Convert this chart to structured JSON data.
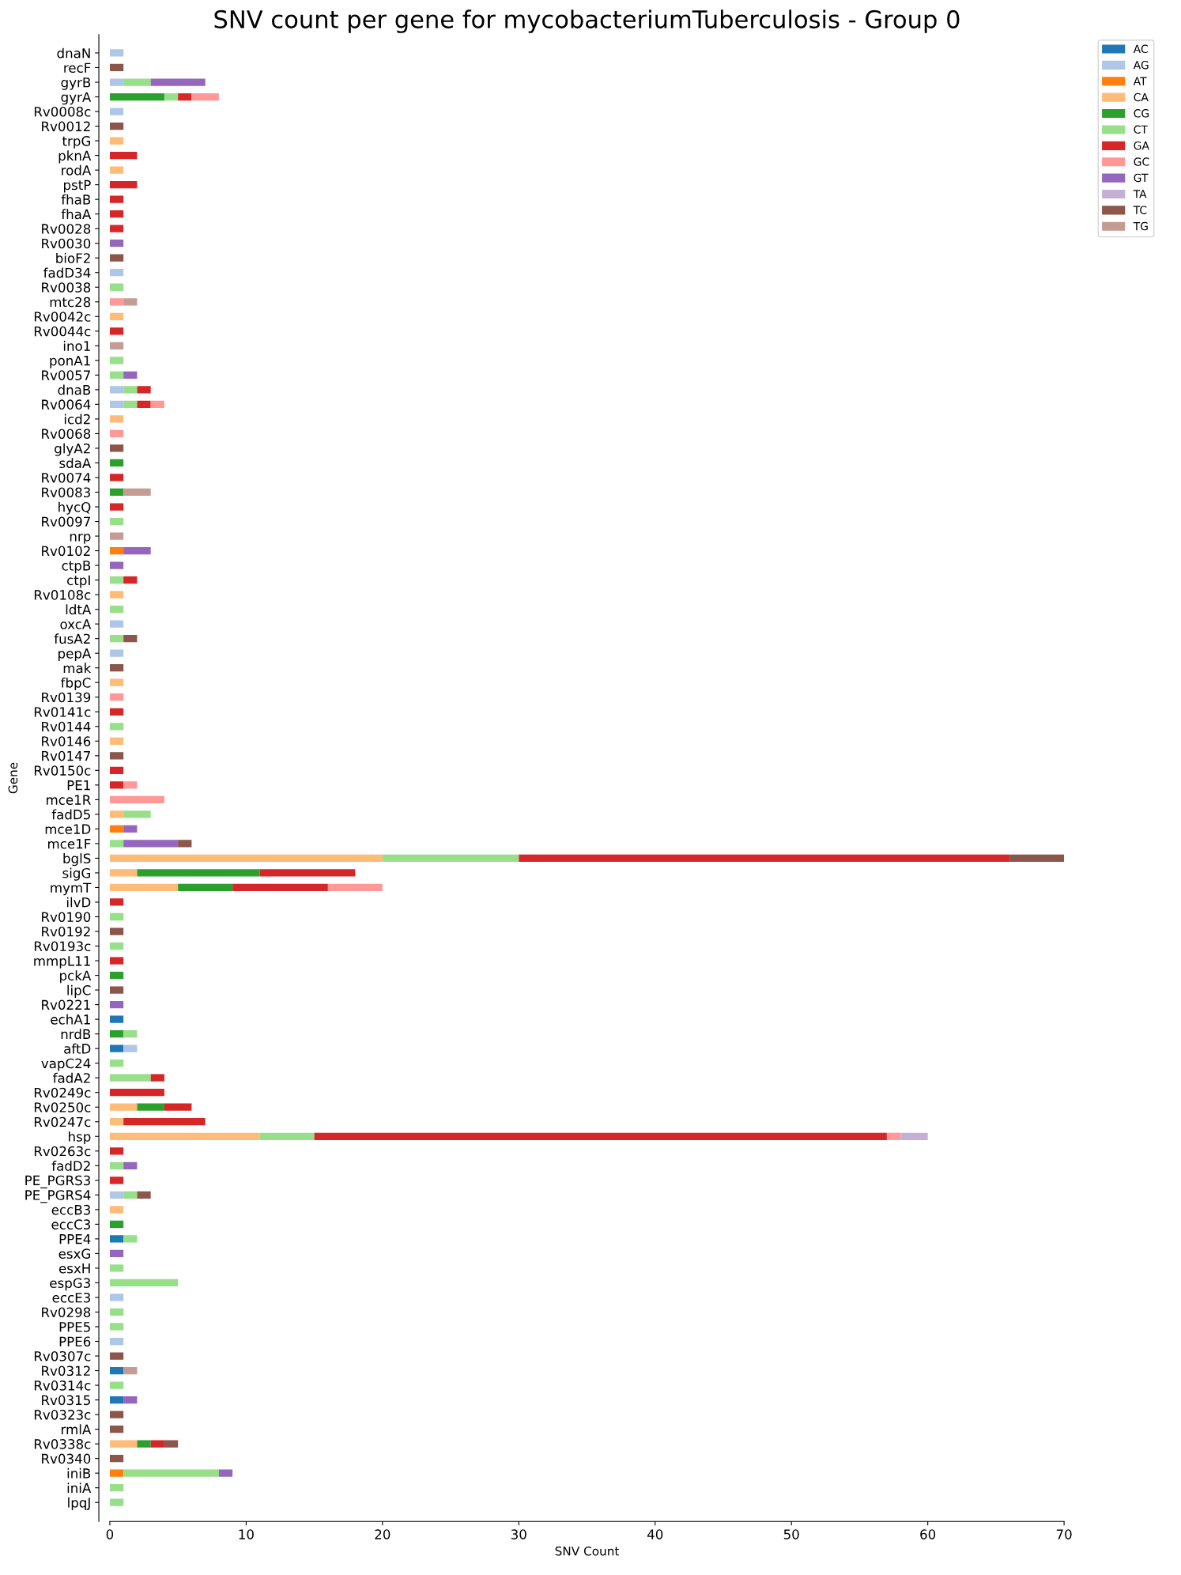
{
  "chart_data": {
    "type": "bar",
    "orientation": "horizontal",
    "stacked": true,
    "title": "SNV count per gene for mycobacteriumTuberculosis - Group 0",
    "xlabel": "SNV Count",
    "ylabel": "Gene",
    "categories": [
      "dnaN",
      "recF",
      "gyrB",
      "gyrA",
      "Rv0008c",
      "Rv0012",
      "trpG",
      "pknA",
      "rodA",
      "pstP",
      "fhaB",
      "fhaA",
      "Rv0028",
      "Rv0030",
      "bioF2",
      "fadD34",
      "Rv0038",
      "mtc28",
      "Rv0042c",
      "Rv0044c",
      "ino1",
      "ponA1",
      "Rv0057",
      "dnaB",
      "Rv0064",
      "icd2",
      "Rv0068",
      "glyA2",
      "sdaA",
      "Rv0074",
      "Rv0083",
      "hycQ",
      "Rv0097",
      "nrp",
      "Rv0102",
      "ctpB",
      "ctpI",
      "Rv0108c",
      "ldtA",
      "oxcA",
      "fusA2",
      "pepA",
      "mak",
      "fbpC",
      "Rv0139",
      "Rv0141c",
      "Rv0144",
      "Rv0146",
      "Rv0147",
      "Rv0150c",
      "PE1",
      "mce1R",
      "fadD5",
      "mce1D",
      "mce1F",
      "bglS",
      "sigG",
      "mymT",
      "ilvD",
      "Rv0190",
      "Rv0192",
      "Rv0193c",
      "mmpL11",
      "pckA",
      "lipC",
      "Rv0221",
      "echA1",
      "nrdB",
      "aftD",
      "vapC24",
      "fadA2",
      "Rv0249c",
      "Rv0250c",
      "Rv0247c",
      "hsp",
      "Rv0263c",
      "fadD2",
      "PE_PGRS3",
      "PE_PGRS4",
      "eccB3",
      "eccC3",
      "PPE4",
      "esxG",
      "esxH",
      "espG3",
      "eccE3",
      "Rv0298",
      "PPE5",
      "PPE6",
      "Rv0307c",
      "Rv0312",
      "Rv0314c",
      "Rv0315",
      "Rv0323c",
      "rmlA",
      "Rv0338c",
      "Rv0340",
      "iniB",
      "iniA",
      "lpqJ"
    ],
    "series": [
      {
        "name": "AC",
        "color": "#1f77b4",
        "values": [
          null,
          null,
          null,
          null,
          null,
          null,
          null,
          null,
          null,
          null,
          null,
          null,
          null,
          null,
          null,
          null,
          null,
          null,
          null,
          null,
          null,
          null,
          null,
          null,
          null,
          null,
          null,
          null,
          null,
          null,
          null,
          null,
          null,
          null,
          null,
          null,
          null,
          null,
          null,
          null,
          null,
          null,
          null,
          null,
          null,
          null,
          null,
          null,
          null,
          null,
          null,
          null,
          null,
          null,
          null,
          null,
          null,
          null,
          null,
          null,
          null,
          null,
          null,
          null,
          null,
          null,
          1,
          null,
          1,
          null,
          null,
          null,
          null,
          null,
          null,
          null,
          null,
          null,
          null,
          null,
          null,
          1,
          null,
          null,
          null,
          null,
          null,
          null,
          null,
          null,
          1,
          null,
          1,
          null,
          null,
          null,
          null,
          null,
          null,
          null
        ]
      },
      {
        "name": "AG",
        "color": "#aec7e8",
        "values": [
          1,
          null,
          1,
          null,
          1,
          null,
          null,
          null,
          null,
          null,
          null,
          null,
          null,
          null,
          null,
          1,
          null,
          null,
          null,
          null,
          null,
          null,
          null,
          1,
          1,
          null,
          null,
          null,
          null,
          null,
          null,
          null,
          null,
          null,
          null,
          null,
          null,
          null,
          null,
          1,
          null,
          1,
          null,
          null,
          null,
          null,
          null,
          null,
          null,
          null,
          null,
          null,
          null,
          null,
          null,
          null,
          null,
          null,
          null,
          null,
          null,
          null,
          null,
          null,
          null,
          null,
          null,
          null,
          1,
          null,
          null,
          null,
          null,
          null,
          null,
          null,
          null,
          null,
          1,
          null,
          null,
          null,
          null,
          null,
          null,
          1,
          null,
          null,
          1,
          null,
          null,
          null,
          null,
          null,
          null,
          null,
          null,
          null,
          null,
          null
        ]
      },
      {
        "name": "AT",
        "color": "#ff7f0e",
        "values": [
          null,
          null,
          null,
          null,
          null,
          null,
          null,
          null,
          null,
          null,
          null,
          null,
          null,
          null,
          null,
          null,
          null,
          null,
          null,
          null,
          null,
          null,
          null,
          null,
          null,
          null,
          null,
          null,
          null,
          null,
          null,
          null,
          null,
          null,
          1,
          null,
          null,
          null,
          null,
          null,
          null,
          null,
          null,
          null,
          null,
          null,
          null,
          null,
          null,
          null,
          null,
          null,
          null,
          1,
          null,
          null,
          null,
          null,
          null,
          null,
          null,
          null,
          null,
          null,
          null,
          null,
          null,
          null,
          null,
          null,
          null,
          null,
          null,
          null,
          null,
          null,
          null,
          null,
          null,
          null,
          null,
          null,
          null,
          null,
          null,
          null,
          null,
          null,
          null,
          null,
          null,
          null,
          null,
          null,
          null,
          null,
          null,
          1,
          null,
          null
        ]
      },
      {
        "name": "CA",
        "color": "#ffbb78",
        "values": [
          null,
          null,
          null,
          null,
          null,
          null,
          1,
          null,
          1,
          null,
          null,
          null,
          null,
          null,
          null,
          null,
          null,
          null,
          1,
          null,
          null,
          null,
          null,
          null,
          null,
          1,
          null,
          null,
          null,
          null,
          null,
          null,
          null,
          null,
          null,
          null,
          null,
          1,
          null,
          null,
          null,
          null,
          null,
          1,
          null,
          null,
          null,
          1,
          null,
          null,
          null,
          null,
          1,
          null,
          null,
          20,
          2,
          5,
          null,
          null,
          null,
          null,
          null,
          null,
          null,
          null,
          null,
          null,
          null,
          null,
          null,
          null,
          2,
          1,
          11,
          null,
          null,
          null,
          null,
          1,
          null,
          null,
          null,
          null,
          null,
          null,
          null,
          null,
          null,
          null,
          null,
          null,
          null,
          null,
          null,
          2,
          null,
          null,
          null,
          null
        ]
      },
      {
        "name": "CG",
        "color": "#2ca02c",
        "values": [
          null,
          null,
          null,
          4,
          null,
          null,
          null,
          null,
          null,
          null,
          null,
          null,
          null,
          null,
          null,
          null,
          null,
          null,
          null,
          null,
          null,
          null,
          null,
          null,
          null,
          null,
          null,
          null,
          1,
          null,
          1,
          null,
          null,
          null,
          null,
          null,
          null,
          null,
          null,
          null,
          null,
          null,
          null,
          null,
          null,
          null,
          null,
          null,
          null,
          null,
          null,
          null,
          null,
          null,
          null,
          null,
          9,
          4,
          null,
          null,
          null,
          null,
          null,
          1,
          null,
          null,
          null,
          1,
          null,
          null,
          null,
          null,
          2,
          null,
          null,
          null,
          null,
          null,
          null,
          null,
          1,
          null,
          null,
          null,
          null,
          null,
          null,
          null,
          null,
          null,
          null,
          null,
          null,
          null,
          null,
          1,
          null,
          null,
          null,
          null
        ]
      },
      {
        "name": "CT",
        "color": "#98df8a",
        "values": [
          null,
          null,
          2,
          1,
          null,
          null,
          null,
          null,
          null,
          null,
          null,
          null,
          null,
          null,
          null,
          null,
          1,
          null,
          null,
          null,
          null,
          1,
          1,
          1,
          1,
          null,
          null,
          null,
          null,
          null,
          null,
          null,
          1,
          null,
          null,
          null,
          1,
          null,
          1,
          null,
          1,
          null,
          null,
          null,
          null,
          null,
          1,
          null,
          null,
          null,
          null,
          null,
          2,
          null,
          1,
          10,
          null,
          null,
          null,
          1,
          null,
          1,
          null,
          null,
          null,
          null,
          null,
          1,
          null,
          1,
          3,
          null,
          null,
          null,
          4,
          null,
          1,
          null,
          1,
          null,
          null,
          1,
          null,
          1,
          5,
          null,
          1,
          1,
          null,
          null,
          null,
          1,
          null,
          null,
          null,
          null,
          null,
          7,
          1,
          1
        ]
      },
      {
        "name": "GA",
        "color": "#d62728",
        "values": [
          null,
          null,
          null,
          1,
          null,
          null,
          null,
          2,
          null,
          2,
          1,
          1,
          1,
          null,
          null,
          null,
          null,
          null,
          null,
          1,
          null,
          null,
          null,
          1,
          1,
          null,
          null,
          null,
          null,
          1,
          null,
          1,
          null,
          null,
          null,
          null,
          1,
          null,
          null,
          null,
          null,
          null,
          null,
          null,
          null,
          1,
          null,
          null,
          null,
          1,
          1,
          null,
          null,
          null,
          null,
          36,
          7,
          7,
          1,
          null,
          null,
          null,
          1,
          null,
          null,
          null,
          null,
          null,
          null,
          null,
          1,
          4,
          2,
          6,
          42,
          1,
          null,
          1,
          null,
          null,
          null,
          null,
          null,
          null,
          null,
          null,
          null,
          null,
          null,
          null,
          null,
          null,
          null,
          null,
          null,
          1,
          null,
          null,
          null,
          null
        ]
      },
      {
        "name": "GC",
        "color": "#ff9896",
        "values": [
          null,
          null,
          null,
          2,
          null,
          null,
          null,
          null,
          null,
          null,
          null,
          null,
          null,
          null,
          null,
          null,
          null,
          1,
          null,
          null,
          null,
          null,
          null,
          null,
          1,
          null,
          1,
          null,
          null,
          null,
          null,
          null,
          null,
          null,
          null,
          null,
          null,
          null,
          null,
          null,
          null,
          null,
          null,
          null,
          1,
          null,
          null,
          null,
          null,
          null,
          1,
          4,
          null,
          null,
          null,
          null,
          null,
          4,
          null,
          null,
          null,
          null,
          null,
          null,
          null,
          null,
          null,
          null,
          null,
          null,
          null,
          null,
          null,
          null,
          1,
          null,
          null,
          null,
          null,
          null,
          null,
          null,
          null,
          null,
          null,
          null,
          null,
          null,
          null,
          null,
          null,
          null,
          null,
          null,
          null,
          null,
          null,
          null,
          null,
          null
        ]
      },
      {
        "name": "GT",
        "color": "#9467bd",
        "values": [
          null,
          null,
          4,
          null,
          null,
          null,
          null,
          null,
          null,
          null,
          null,
          null,
          null,
          1,
          null,
          null,
          null,
          null,
          null,
          null,
          null,
          null,
          1,
          null,
          null,
          null,
          null,
          null,
          null,
          null,
          null,
          null,
          null,
          null,
          2,
          1,
          null,
          null,
          null,
          null,
          null,
          null,
          null,
          null,
          null,
          null,
          null,
          null,
          null,
          null,
          null,
          null,
          null,
          1,
          4,
          null,
          null,
          null,
          null,
          null,
          null,
          null,
          null,
          null,
          null,
          1,
          null,
          null,
          null,
          null,
          null,
          null,
          null,
          null,
          null,
          null,
          1,
          null,
          null,
          null,
          null,
          null,
          1,
          null,
          null,
          null,
          null,
          null,
          null,
          null,
          null,
          null,
          1,
          null,
          null,
          null,
          null,
          1,
          null,
          null
        ]
      },
      {
        "name": "TA",
        "color": "#c5b0d5",
        "values": [
          null,
          null,
          null,
          null,
          null,
          null,
          null,
          null,
          null,
          null,
          null,
          null,
          null,
          null,
          null,
          null,
          null,
          null,
          null,
          null,
          null,
          null,
          null,
          null,
          null,
          null,
          null,
          null,
          null,
          null,
          null,
          null,
          null,
          null,
          null,
          null,
          null,
          null,
          null,
          null,
          null,
          null,
          null,
          null,
          null,
          null,
          null,
          null,
          null,
          null,
          null,
          null,
          null,
          null,
          null,
          null,
          null,
          null,
          null,
          null,
          null,
          null,
          null,
          null,
          null,
          null,
          null,
          null,
          null,
          null,
          null,
          null,
          null,
          null,
          2,
          null,
          null,
          null,
          null,
          null,
          null,
          null,
          null,
          null,
          null,
          null,
          null,
          null,
          null,
          null,
          null,
          null,
          null,
          null,
          null,
          null,
          null,
          null,
          null,
          null
        ]
      },
      {
        "name": "TC",
        "color": "#8c564b",
        "values": [
          null,
          1,
          null,
          null,
          null,
          1,
          null,
          null,
          null,
          null,
          null,
          null,
          null,
          null,
          1,
          null,
          null,
          null,
          null,
          null,
          null,
          null,
          null,
          null,
          null,
          null,
          null,
          1,
          null,
          null,
          null,
          null,
          null,
          null,
          null,
          null,
          null,
          null,
          null,
          null,
          1,
          null,
          1,
          null,
          null,
          null,
          null,
          null,
          1,
          null,
          null,
          null,
          null,
          null,
          1,
          4,
          null,
          null,
          null,
          null,
          1,
          null,
          null,
          null,
          1,
          null,
          null,
          null,
          null,
          null,
          null,
          null,
          null,
          null,
          null,
          null,
          null,
          null,
          1,
          null,
          null,
          null,
          null,
          null,
          null,
          null,
          null,
          null,
          null,
          1,
          null,
          null,
          null,
          1,
          1,
          1,
          1,
          null,
          null,
          null
        ]
      },
      {
        "name": "TG",
        "color": "#c49c94",
        "values": [
          null,
          null,
          null,
          null,
          null,
          null,
          null,
          null,
          null,
          null,
          null,
          null,
          null,
          null,
          null,
          null,
          null,
          1,
          null,
          null,
          1,
          null,
          null,
          null,
          null,
          null,
          null,
          null,
          null,
          null,
          2,
          null,
          null,
          1,
          null,
          null,
          null,
          null,
          null,
          null,
          null,
          null,
          null,
          null,
          null,
          null,
          null,
          null,
          null,
          null,
          null,
          null,
          null,
          null,
          null,
          null,
          null,
          null,
          null,
          null,
          null,
          null,
          null,
          null,
          null,
          null,
          null,
          null,
          null,
          null,
          null,
          null,
          null,
          null,
          null,
          null,
          null,
          null,
          null,
          null,
          null,
          null,
          null,
          null,
          null,
          null,
          null,
          null,
          null,
          null,
          1,
          null,
          null,
          null,
          null,
          null,
          null,
          null,
          null,
          null
        ]
      }
    ],
    "xlim": [
      0,
      70
    ],
    "xticks": [
      0,
      10,
      20,
      30,
      40,
      50,
      60,
      70
    ],
    "legend": "top right",
    "grid": false
  }
}
